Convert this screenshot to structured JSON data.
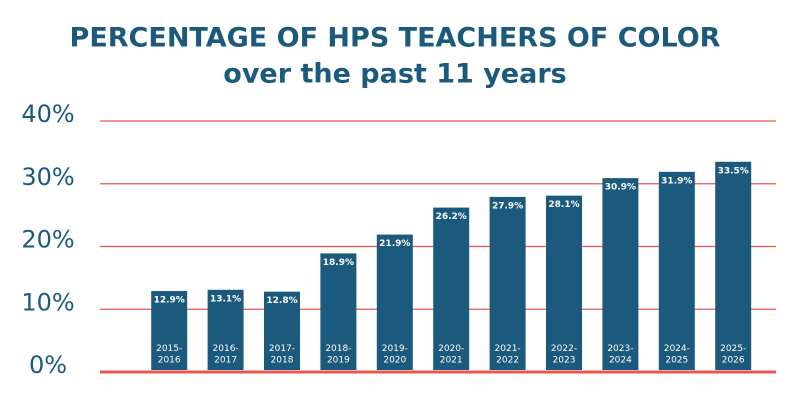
{
  "chart_data": {
    "type": "bar",
    "title": "PERCENTAGE OF HPS TEACHERS OF COLOR",
    "subtitle": "over the past 11 years",
    "categories": [
      "2015-\n2016",
      "2016-\n2017",
      "2017-\n2018",
      "2018-\n2019",
      "2019-\n2020",
      "2020-\n2021",
      "2021-\n2022",
      "2022-\n2023",
      "2023-\n2024",
      "2024-\n2025",
      "2025-\n2026"
    ],
    "values": [
      12.9,
      13.1,
      12.8,
      18.9,
      21.9,
      26.2,
      27.9,
      28.1,
      30.9,
      31.9,
      33.5
    ],
    "value_labels": [
      "12.9%",
      "13.1%",
      "12.8%",
      "18.9%",
      "21.9%",
      "26.2%",
      "27.9%",
      "28.1%",
      "30.9%",
      "31.9%",
      "33.5%"
    ],
    "color": "#1b5a7d",
    "grid_color": "#e8564e",
    "ylim": [
      0,
      40
    ],
    "yticks": [
      {
        "value": 0,
        "label": "0%"
      },
      {
        "value": 10,
        "label": "10%"
      },
      {
        "value": 20,
        "label": "20%"
      },
      {
        "value": 30,
        "label": "30%"
      },
      {
        "value": 40,
        "label": "40%"
      }
    ],
    "grid": true
  }
}
